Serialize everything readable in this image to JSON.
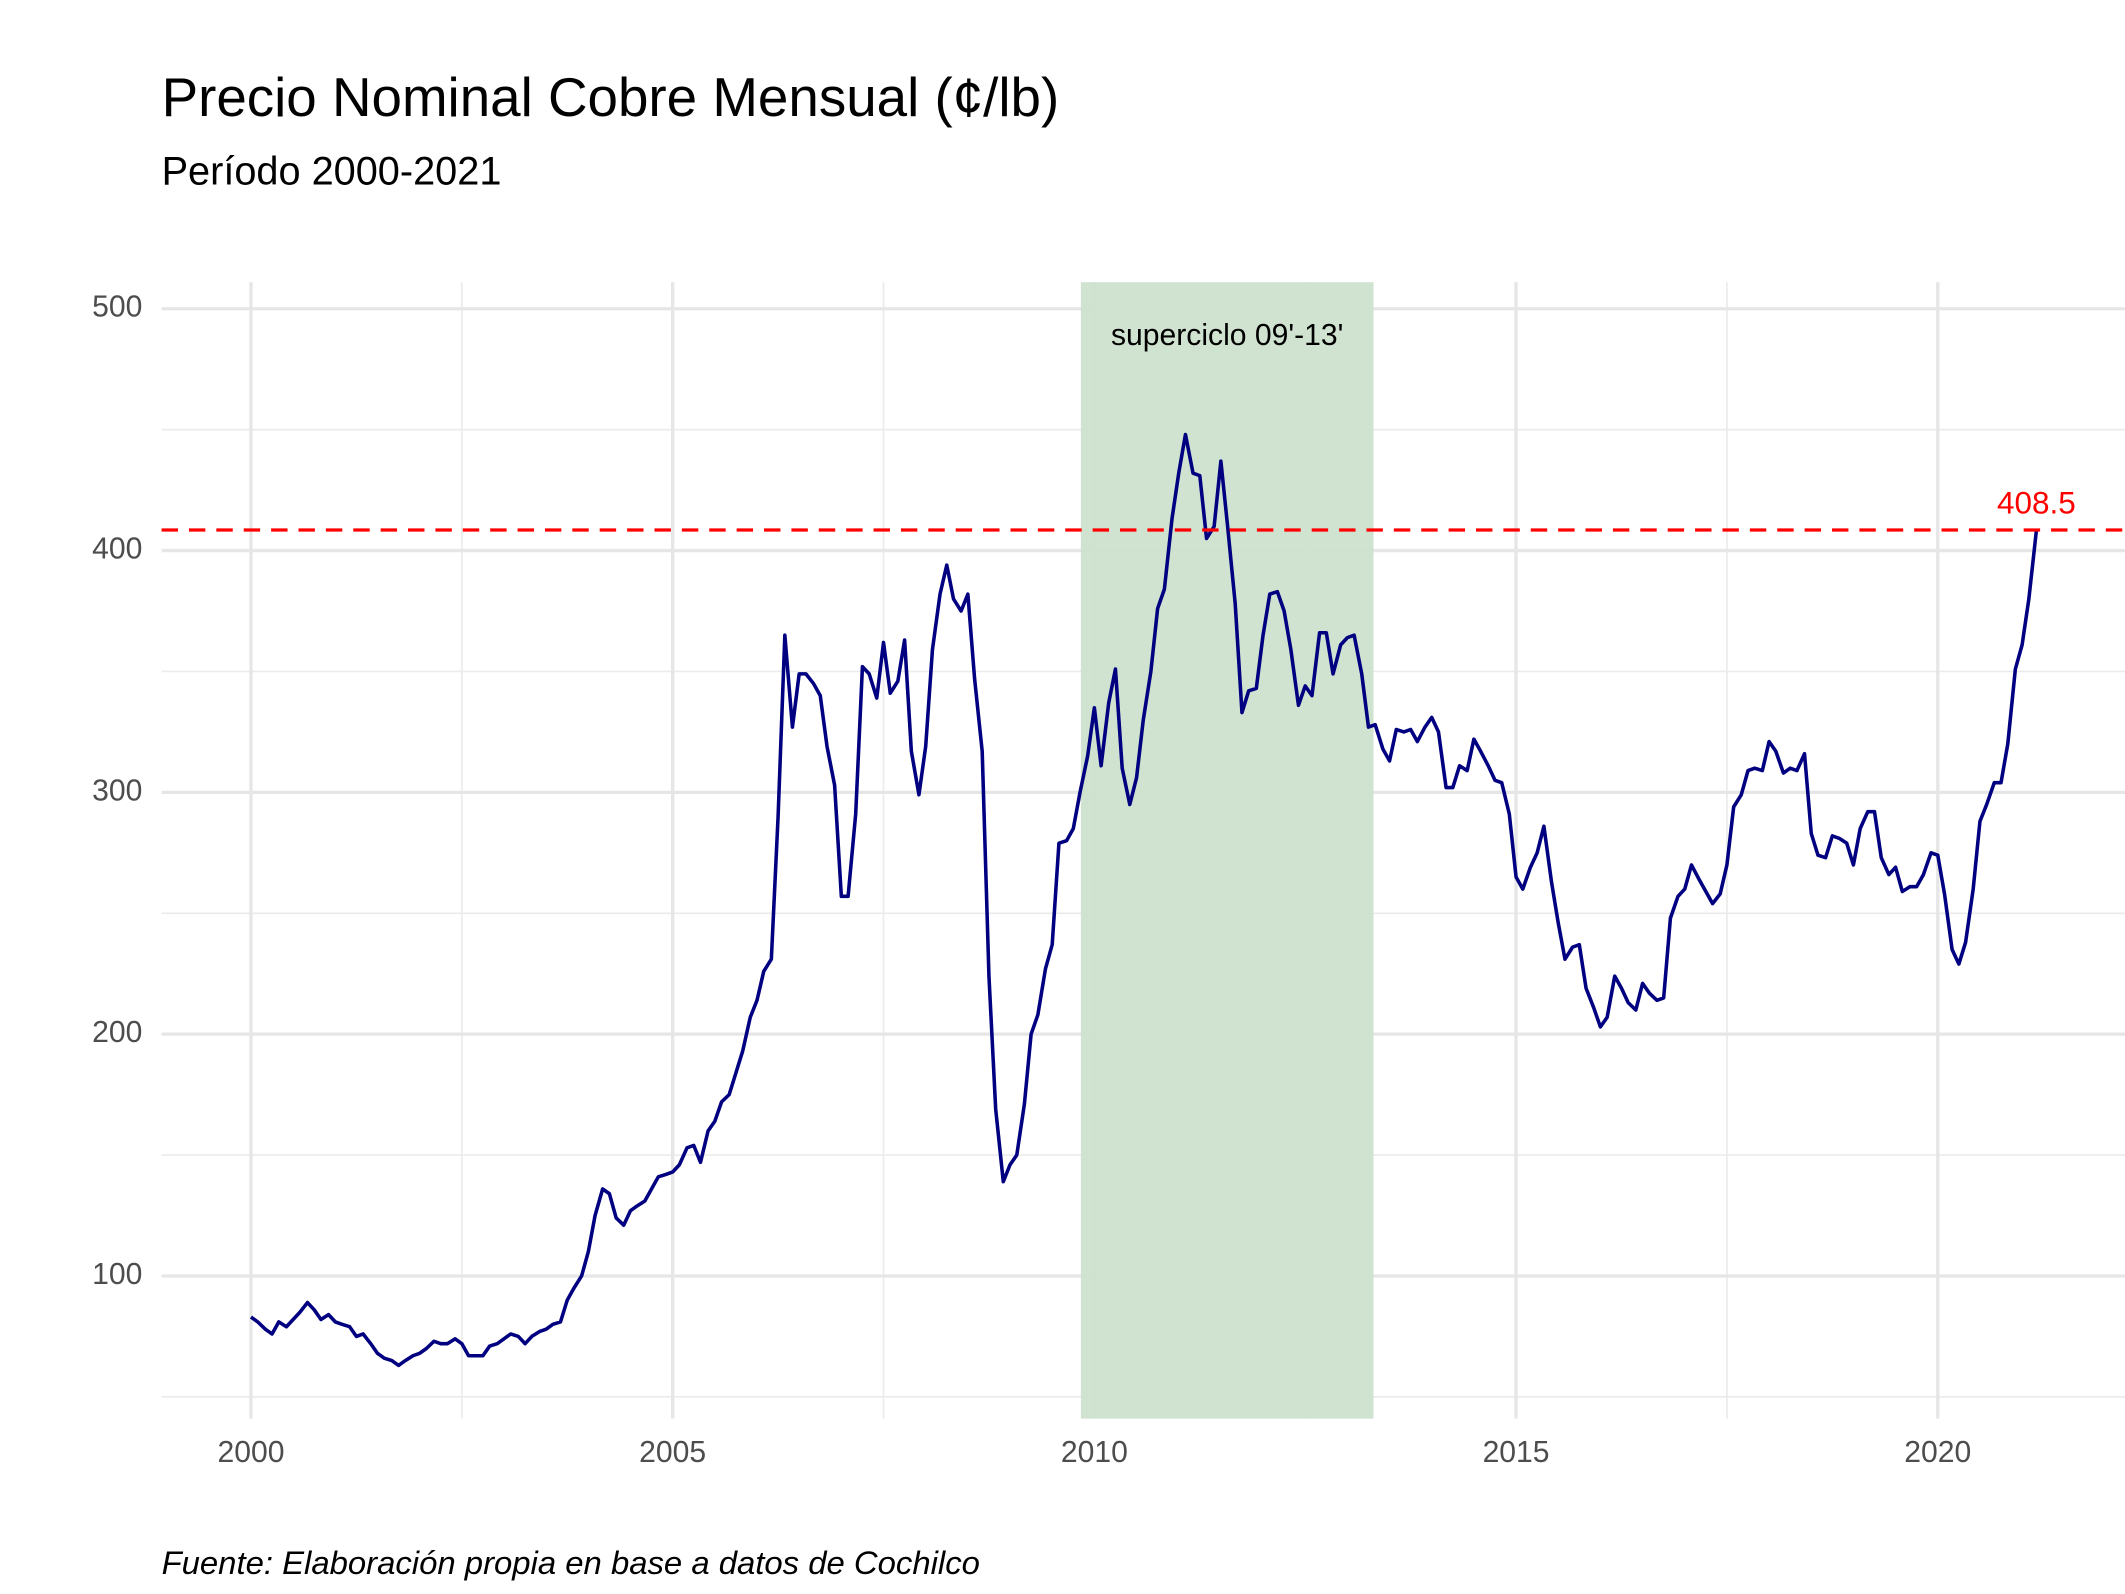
{
  "chart_data": {
    "type": "line",
    "title": "Precio Nominal Cobre Mensual (¢/lb)",
    "subtitle": "Período 2000-2021",
    "caption": "Fuente: Elaboración propia en base a datos de Cochilco",
    "x": [
      2000.0,
      2000.08,
      2000.17,
      2000.25,
      2000.33,
      2000.42,
      2000.5,
      2000.58,
      2000.67,
      2000.75,
      2000.83,
      2000.92,
      2001.0,
      2001.08,
      2001.17,
      2001.25,
      2001.33,
      2001.42,
      2001.5,
      2001.58,
      2001.67,
      2001.75,
      2001.83,
      2001.92,
      2002.0,
      2002.08,
      2002.17,
      2002.25,
      2002.33,
      2002.42,
      2002.5,
      2002.58,
      2002.67,
      2002.75,
      2002.83,
      2002.92,
      2003.0,
      2003.08,
      2003.17,
      2003.25,
      2003.33,
      2003.42,
      2003.5,
      2003.58,
      2003.67,
      2003.75,
      2003.83,
      2003.92,
      2004.0,
      2004.08,
      2004.17,
      2004.25,
      2004.33,
      2004.42,
      2004.5,
      2004.58,
      2004.67,
      2004.75,
      2004.83,
      2004.92,
      2005.0,
      2005.08,
      2005.17,
      2005.25,
      2005.33,
      2005.42,
      2005.5,
      2005.58,
      2005.67,
      2005.75,
      2005.83,
      2005.92,
      2006.0,
      2006.08,
      2006.17,
      2006.25,
      2006.33,
      2006.42,
      2006.5,
      2006.58,
      2006.67,
      2006.75,
      2006.83,
      2006.92,
      2007.0,
      2007.08,
      2007.17,
      2007.25,
      2007.33,
      2007.42,
      2007.5,
      2007.58,
      2007.67,
      2007.75,
      2007.83,
      2007.92,
      2008.0,
      2008.08,
      2008.17,
      2008.25,
      2008.33,
      2008.42,
      2008.5,
      2008.58,
      2008.67,
      2008.75,
      2008.83,
      2008.92,
      2009.0,
      2009.08,
      2009.17,
      2009.25,
      2009.33,
      2009.42,
      2009.5,
      2009.58,
      2009.67,
      2009.75,
      2009.83,
      2009.92,
      2010.0,
      2010.08,
      2010.17,
      2010.25,
      2010.33,
      2010.42,
      2010.5,
      2010.58,
      2010.67,
      2010.75,
      2010.83,
      2010.92,
      2011.0,
      2011.08,
      2011.17,
      2011.25,
      2011.33,
      2011.42,
      2011.5,
      2011.58,
      2011.67,
      2011.75,
      2011.83,
      2011.92,
      2012.0,
      2012.08,
      2012.17,
      2012.25,
      2012.33,
      2012.42,
      2012.5,
      2012.58,
      2012.67,
      2012.75,
      2012.83,
      2012.92,
      2013.0,
      2013.08,
      2013.17,
      2013.25,
      2013.33,
      2013.42,
      2013.5,
      2013.58,
      2013.67,
      2013.75,
      2013.83,
      2013.92,
      2014.0,
      2014.08,
      2014.17,
      2014.25,
      2014.33,
      2014.42,
      2014.5,
      2014.58,
      2014.67,
      2014.75,
      2014.83,
      2014.92,
      2015.0,
      2015.08,
      2015.17,
      2015.25,
      2015.33,
      2015.42,
      2015.5,
      2015.58,
      2015.67,
      2015.75,
      2015.83,
      2015.92,
      2016.0,
      2016.08,
      2016.17,
      2016.25,
      2016.33,
      2016.42,
      2016.5,
      2016.58,
      2016.67,
      2016.75,
      2016.83,
      2016.92,
      2017.0,
      2017.08,
      2017.17,
      2017.25,
      2017.33,
      2017.42,
      2017.5,
      2017.58,
      2017.67,
      2017.75,
      2017.83,
      2017.92,
      2018.0,
      2018.08,
      2018.17,
      2018.25,
      2018.33,
      2018.42,
      2018.5,
      2018.58,
      2018.67,
      2018.75,
      2018.83,
      2018.92,
      2019.0,
      2019.08,
      2019.17,
      2019.25,
      2019.33,
      2019.42,
      2019.5,
      2019.58,
      2019.67,
      2019.75,
      2019.83,
      2019.92,
      2020.0,
      2020.08,
      2020.17,
      2020.25,
      2020.33,
      2020.42,
      2020.5,
      2020.58,
      2020.67,
      2020.75,
      2020.83,
      2020.92,
      2021.0,
      2021.08,
      2021.17
    ],
    "series": [
      {
        "color": "#000080",
        "values": [
          83,
          81,
          78,
          76,
          81,
          79,
          82,
          85,
          89,
          86,
          82,
          84,
          81,
          80,
          79,
          75,
          76,
          72,
          68,
          66,
          65,
          63,
          65,
          67,
          68,
          70,
          73,
          72,
          72,
          74,
          72,
          67,
          67,
          67,
          71,
          72,
          74,
          76,
          75,
          72,
          75,
          77,
          78,
          80,
          81,
          90,
          95,
          100,
          110,
          125,
          136,
          134,
          124,
          121,
          127,
          129,
          131,
          136,
          141,
          142,
          143,
          146,
          153,
          154,
          147,
          160,
          164,
          172,
          175,
          184,
          193,
          207,
          214,
          226,
          231,
          290,
          365,
          327,
          349,
          349,
          345,
          340,
          319,
          303,
          257,
          257,
          291,
          352,
          349,
          339,
          362,
          341,
          346,
          363,
          317,
          299,
          319,
          359,
          382,
          394,
          380,
          375,
          382,
          347,
          317,
          224,
          169,
          139,
          146,
          150,
          171,
          200,
          208,
          227,
          237,
          279,
          280,
          285,
          300,
          315,
          335,
          311,
          337,
          351,
          310,
          295,
          306,
          330,
          350,
          376,
          384,
          413,
          432,
          448,
          432,
          431,
          405,
          410,
          437,
          410,
          378,
          333,
          342,
          343,
          365,
          382,
          383,
          375,
          359,
          336,
          344,
          340,
          366,
          366,
          349,
          361,
          364,
          365,
          349,
          327,
          328,
          318,
          313,
          326,
          325,
          326,
          321,
          327,
          331,
          325,
          302,
          302,
          311,
          309,
          322,
          317,
          311,
          305,
          304,
          291,
          265,
          260,
          269,
          275,
          286,
          263,
          246,
          231,
          236,
          237,
          219,
          211,
          203,
          207,
          224,
          219,
          213,
          210,
          221,
          217,
          214,
          215,
          248,
          257,
          260,
          270,
          264,
          259,
          254,
          258,
          270,
          294,
          299,
          309,
          310,
          309,
          321,
          317,
          308,
          310,
          309,
          316,
          283,
          274,
          273,
          282,
          281,
          279,
          270,
          285,
          292,
          292,
          273,
          266,
          269,
          259,
          261,
          261,
          266,
          275,
          274,
          258,
          235,
          229,
          238,
          260,
          288,
          295,
          304,
          304,
          320,
          351,
          361,
          380,
          408.5
        ]
      }
    ],
    "shade": {
      "x": [
        2009.84,
        2013.31
      ],
      "label": "superciclo 09'-13'",
      "color": "#cde0cd"
    },
    "hline": {
      "value": 408.5,
      "color": "#ff0000"
    },
    "xlim": [
      1998.94,
      2022.22
    ],
    "ylim": [
      41,
      511
    ],
    "xticks": [
      2000,
      2005,
      2010,
      2015,
      2020
    ],
    "yticks": [
      100,
      200,
      300,
      400,
      500
    ],
    "minor_xticks": [
      2002.5,
      2007.5,
      2012.5,
      2017.5
    ],
    "minor_yticks": [
      50,
      150,
      250,
      350,
      450
    ],
    "grid": true
  }
}
